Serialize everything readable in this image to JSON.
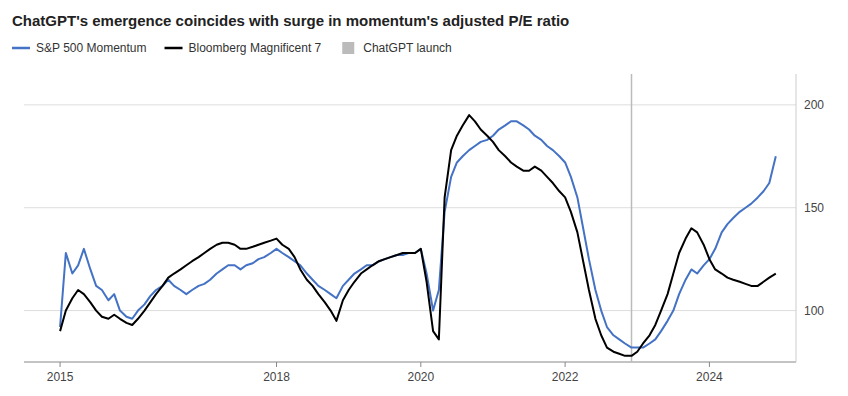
{
  "chart_data": {
    "type": "line",
    "title": "ChatGPT's emergence coincides with surge in momentum's adjusted P/E ratio",
    "x": [
      2015.0,
      2015.08,
      2015.17,
      2015.25,
      2015.33,
      2015.42,
      2015.5,
      2015.58,
      2015.67,
      2015.75,
      2015.83,
      2015.92,
      2016.0,
      2016.08,
      2016.17,
      2016.25,
      2016.33,
      2016.42,
      2016.5,
      2016.58,
      2016.67,
      2016.75,
      2016.83,
      2016.92,
      2017.0,
      2017.08,
      2017.17,
      2017.25,
      2017.33,
      2017.42,
      2017.5,
      2017.58,
      2017.67,
      2017.75,
      2017.83,
      2017.92,
      2018.0,
      2018.08,
      2018.17,
      2018.25,
      2018.33,
      2018.42,
      2018.5,
      2018.58,
      2018.67,
      2018.75,
      2018.83,
      2018.92,
      2019.0,
      2019.08,
      2019.17,
      2019.25,
      2019.33,
      2019.42,
      2019.5,
      2019.58,
      2019.67,
      2019.75,
      2019.83,
      2019.92,
      2020.0,
      2020.08,
      2020.17,
      2020.25,
      2020.33,
      2020.42,
      2020.5,
      2020.58,
      2020.67,
      2020.75,
      2020.83,
      2020.92,
      2021.0,
      2021.08,
      2021.17,
      2021.25,
      2021.33,
      2021.42,
      2021.5,
      2021.58,
      2021.67,
      2021.75,
      2021.83,
      2021.92,
      2022.0,
      2022.08,
      2022.17,
      2022.25,
      2022.33,
      2022.42,
      2022.5,
      2022.58,
      2022.67,
      2022.75,
      2022.83,
      2022.92,
      2023.0,
      2023.08,
      2023.17,
      2023.25,
      2023.33,
      2023.42,
      2023.5,
      2023.58,
      2023.67,
      2023.75,
      2023.83,
      2023.92,
      2024.0,
      2024.08,
      2024.17,
      2024.25,
      2024.33,
      2024.42,
      2024.5,
      2024.58,
      2024.67,
      2024.75,
      2024.83,
      2024.92
    ],
    "series": [
      {
        "name": "S&P 500 Momentum",
        "color": "#4472C4",
        "values": [
          92,
          128,
          118,
          122,
          130,
          120,
          112,
          110,
          105,
          108,
          100,
          97,
          96,
          100,
          103,
          107,
          110,
          112,
          115,
          112,
          110,
          108,
          110,
          112,
          113,
          115,
          118,
          120,
          122,
          122,
          120,
          122,
          123,
          125,
          126,
          128,
          130,
          128,
          126,
          124,
          122,
          118,
          115,
          112,
          110,
          108,
          106,
          112,
          115,
          118,
          120,
          122,
          122,
          124,
          125,
          126,
          127,
          127,
          128,
          128,
          130,
          118,
          100,
          110,
          148,
          165,
          172,
          175,
          178,
          180,
          182,
          183,
          185,
          188,
          190,
          192,
          192,
          190,
          188,
          185,
          183,
          180,
          178,
          175,
          172,
          165,
          155,
          140,
          125,
          110,
          100,
          92,
          88,
          86,
          84,
          82,
          82,
          82,
          84,
          86,
          90,
          95,
          100,
          108,
          115,
          120,
          118,
          122,
          125,
          130,
          138,
          142,
          145,
          148,
          150,
          152,
          155,
          158,
          162,
          175
        ]
      },
      {
        "name": "Bloomberg Magnificent 7",
        "color": "#000000",
        "values": [
          90,
          100,
          106,
          110,
          108,
          104,
          100,
          97,
          96,
          98,
          96,
          94,
          93,
          96,
          100,
          104,
          108,
          112,
          116,
          118,
          120,
          122,
          124,
          126,
          128,
          130,
          132,
          133,
          133,
          132,
          130,
          130,
          131,
          132,
          133,
          134,
          135,
          132,
          130,
          126,
          120,
          115,
          112,
          108,
          104,
          100,
          95,
          105,
          110,
          114,
          118,
          120,
          122,
          124,
          125,
          126,
          127,
          128,
          128,
          128,
          130,
          114,
          90,
          86,
          155,
          178,
          185,
          190,
          195,
          192,
          188,
          185,
          182,
          178,
          175,
          172,
          170,
          168,
          168,
          170,
          168,
          165,
          162,
          158,
          155,
          148,
          138,
          124,
          110,
          96,
          88,
          82,
          80,
          79,
          78,
          78,
          80,
          84,
          88,
          93,
          100,
          108,
          118,
          128,
          135,
          140,
          138,
          132,
          125,
          120,
          118,
          116,
          115,
          114,
          113,
          112,
          112,
          114,
          116,
          118
        ]
      }
    ],
    "vlines": [
      {
        "name": "ChatGPT launch",
        "x": 2022.92,
        "color": "#BBBBBB"
      }
    ],
    "xlim": [
      2014.5,
      2025.2
    ],
    "xticks": [
      2015,
      2018,
      2020,
      2022,
      2024
    ],
    "ylim": [
      75,
      215
    ],
    "yticks": [
      100,
      150,
      200
    ],
    "grid": true,
    "legend": "top-left"
  }
}
